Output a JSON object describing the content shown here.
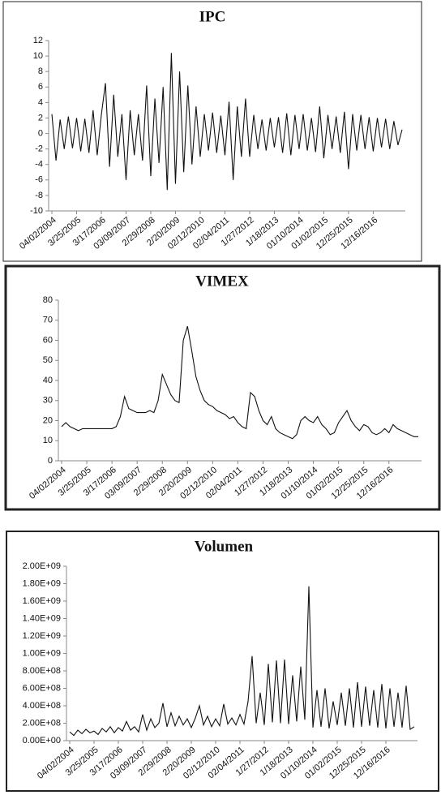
{
  "chart_data": [
    {
      "type": "line",
      "title": "IPC",
      "color": "#111111",
      "categories": [
        "04/02/2004",
        null,
        null,
        null,
        null,
        null,
        "3/25/2005",
        null,
        null,
        null,
        null,
        null,
        "3/17/2006",
        null,
        null,
        null,
        null,
        null,
        "03/09/2007",
        null,
        null,
        null,
        null,
        null,
        "2/29/2008",
        null,
        null,
        null,
        null,
        null,
        "2/20/2009",
        null,
        null,
        null,
        null,
        null,
        "02/12/2010",
        null,
        null,
        null,
        null,
        null,
        "02/04/2011",
        null,
        null,
        null,
        null,
        null,
        "1/27/2012",
        null,
        null,
        null,
        null,
        null,
        "1/18/2013",
        null,
        null,
        null,
        null,
        null,
        "01/10/2014",
        null,
        null,
        null,
        null,
        null,
        "01/02/2015",
        null,
        null,
        null,
        null,
        null,
        "12/25/2015",
        null,
        null,
        null,
        null,
        null,
        "12/16/2016",
        null,
        null,
        null,
        null,
        null,
        null,
        null
      ],
      "values": [
        2.5,
        -3.5,
        1.8,
        -2.0,
        2.2,
        -1.9,
        2.0,
        -2.3,
        1.9,
        -2.5,
        3.0,
        -2.8,
        2.4,
        6.5,
        -4.3,
        5.0,
        -3.0,
        2.5,
        -6.0,
        3.0,
        -2.8,
        2.5,
        -3.5,
        6.2,
        -5.5,
        4.5,
        -3.8,
        6.0,
        -7.3,
        10.4,
        -6.5,
        8.0,
        -5.0,
        6.2,
        -4.0,
        3.5,
        -3.0,
        2.5,
        -2.2,
        2.7,
        -2.5,
        2.3,
        -2.8,
        4.1,
        -6.0,
        3.5,
        -3.0,
        4.5,
        -3.0,
        2.4,
        -2.0,
        1.8,
        -2.2,
        2.0,
        -1.8,
        2.1,
        -2.5,
        2.6,
        -2.8,
        2.4,
        -2.0,
        2.5,
        -2.2,
        2.0,
        -2.4,
        3.5,
        -3.2,
        2.4,
        -2.0,
        2.2,
        -2.5,
        2.8,
        -4.6,
        2.5,
        -2.2,
        2.4,
        -2.0,
        2.1,
        -2.3,
        2.0,
        -1.8,
        1.9,
        -2.0,
        1.6,
        -1.5,
        0.5
      ],
      "ylim": [
        -10,
        12
      ],
      "yticks": [
        -10,
        -8,
        -6,
        -4,
        -2,
        0,
        2,
        4,
        6,
        8,
        10,
        12
      ]
    },
    {
      "type": "line",
      "title": "VIMEX",
      "color": "#111111",
      "categories": [
        "04/02/2004",
        null,
        null,
        null,
        null,
        null,
        "3/25/2005",
        null,
        null,
        null,
        null,
        null,
        "3/17/2006",
        null,
        null,
        null,
        null,
        null,
        "03/09/2007",
        null,
        null,
        null,
        null,
        null,
        "2/29/2008",
        null,
        null,
        null,
        null,
        null,
        "2/20/2009",
        null,
        null,
        null,
        null,
        null,
        "02/12/2010",
        null,
        null,
        null,
        null,
        null,
        "02/04/2011",
        null,
        null,
        null,
        null,
        null,
        "1/27/2012",
        null,
        null,
        null,
        null,
        null,
        "1/18/2013",
        null,
        null,
        null,
        null,
        null,
        "01/10/2014",
        null,
        null,
        null,
        null,
        null,
        "01/02/2015",
        null,
        null,
        null,
        null,
        null,
        "12/25/2015",
        null,
        null,
        null,
        null,
        null,
        "12/16/2016",
        null,
        null,
        null,
        null,
        null,
        null,
        null
      ],
      "values": [
        17,
        19,
        17,
        16,
        15,
        16,
        16,
        16,
        16,
        16,
        16,
        16,
        16,
        17,
        22,
        32,
        26,
        25,
        24,
        24,
        24,
        25,
        24,
        30,
        43,
        38,
        33,
        30,
        29,
        60,
        67,
        55,
        42,
        35,
        30,
        28,
        27,
        25,
        24,
        23,
        21,
        22,
        19,
        17,
        16,
        34,
        32,
        25,
        20,
        18,
        22,
        16,
        14,
        13,
        12,
        11,
        13,
        20,
        22,
        20,
        19,
        22,
        18,
        16,
        13,
        14,
        19,
        22,
        25,
        20,
        17,
        15,
        18,
        17,
        14,
        13,
        14,
        16,
        14,
        18,
        16,
        15,
        14,
        13,
        12,
        12
      ],
      "ylim": [
        0,
        80
      ],
      "yticks": [
        0,
        10,
        20,
        30,
        40,
        50,
        60,
        70,
        80
      ]
    },
    {
      "type": "line",
      "title": "Volumen",
      "color": "#111111",
      "categories": [
        "04/02/2004",
        null,
        null,
        null,
        null,
        null,
        "3/25/2005",
        null,
        null,
        null,
        null,
        null,
        "3/17/2006",
        null,
        null,
        null,
        null,
        null,
        "03/09/2007",
        null,
        null,
        null,
        null,
        null,
        "2/29/2008",
        null,
        null,
        null,
        null,
        null,
        "2/20/2009",
        null,
        null,
        null,
        null,
        null,
        "02/12/2010",
        null,
        null,
        null,
        null,
        null,
        "02/04/2011",
        null,
        null,
        null,
        null,
        null,
        "1/27/2012",
        null,
        null,
        null,
        null,
        null,
        "1/18/2013",
        null,
        null,
        null,
        null,
        null,
        "01/10/2014",
        null,
        null,
        null,
        null,
        null,
        "01/02/2015",
        null,
        null,
        null,
        null,
        null,
        "12/25/2015",
        null,
        null,
        null,
        null,
        null,
        "12/16/2016",
        null,
        null,
        null,
        null,
        null,
        null,
        null
      ],
      "values": [
        100000000,
        60000000,
        120000000,
        80000000,
        130000000,
        90000000,
        110000000,
        70000000,
        140000000,
        100000000,
        160000000,
        90000000,
        150000000,
        110000000,
        220000000,
        120000000,
        160000000,
        100000000,
        300000000,
        120000000,
        250000000,
        150000000,
        200000000,
        430000000,
        160000000,
        320000000,
        170000000,
        280000000,
        180000000,
        250000000,
        150000000,
        260000000,
        400000000,
        180000000,
        280000000,
        160000000,
        250000000,
        170000000,
        420000000,
        190000000,
        260000000,
        180000000,
        300000000,
        190000000,
        450000000,
        970000000,
        200000000,
        550000000,
        180000000,
        880000000,
        210000000,
        920000000,
        200000000,
        930000000,
        190000000,
        750000000,
        220000000,
        850000000,
        240000000,
        1770000000,
        150000000,
        580000000,
        160000000,
        600000000,
        140000000,
        450000000,
        180000000,
        550000000,
        170000000,
        600000000,
        150000000,
        670000000,
        160000000,
        620000000,
        170000000,
        580000000,
        150000000,
        650000000,
        140000000,
        600000000,
        160000000,
        550000000,
        150000000,
        630000000,
        130000000,
        160000000
      ],
      "ylim": [
        0,
        2000000000
      ],
      "yticks": [
        {
          "value": 0,
          "label": "0.00E+00"
        },
        {
          "value": 200000000,
          "label": "2.00E+08"
        },
        {
          "value": 400000000,
          "label": "4.00E+08"
        },
        {
          "value": 600000000,
          "label": "6.00E+08"
        },
        {
          "value": 800000000,
          "label": "8.00E+08"
        },
        {
          "value": 1000000000,
          "label": "1.00E+09"
        },
        {
          "value": 1200000000,
          "label": "1.20E+09"
        },
        {
          "value": 1400000000,
          "label": "1.40E+09"
        },
        {
          "value": 1600000000,
          "label": "1.60E+09"
        },
        {
          "value": 1800000000,
          "label": "1.80E+09"
        },
        {
          "value": 2000000000,
          "label": "2.00E+09"
        }
      ]
    }
  ]
}
